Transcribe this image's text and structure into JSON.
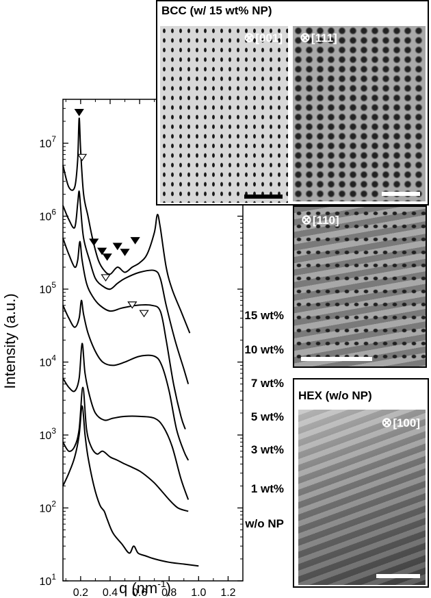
{
  "chart_data": {
    "type": "line",
    "xlabel": "q (nm",
    "xlabel_sup": "-1",
    "xlabel_tail": ")",
    "ylabel": "Intensity (a.u.)",
    "xlim": [
      0.08,
      1.3
    ],
    "ylim": [
      10,
      40000000
    ],
    "y_scale": "log",
    "x_ticks": [
      0.2,
      0.4,
      0.6,
      0.8,
      1.0,
      1.2
    ],
    "x_tick_labels": [
      "0.2",
      "0.4",
      "0.6",
      "0.8",
      "1.0",
      "1.2"
    ],
    "y_ticks": [
      10,
      100,
      1000,
      10000,
      100000,
      1000000,
      10000000
    ],
    "y_tick_base": "10",
    "y_tick_exps": [
      "1",
      "2",
      "3",
      "4",
      "5",
      "6",
      "7"
    ],
    "series": [
      {
        "name": "15 wt%",
        "x": [
          0.08,
          0.12,
          0.16,
          0.18,
          0.19,
          0.2,
          0.22,
          0.25,
          0.28,
          0.32,
          0.36,
          0.4,
          0.45,
          0.5,
          0.55,
          0.6,
          0.65,
          0.7,
          0.72,
          0.74,
          0.78,
          0.82,
          0.88,
          0.94
        ],
        "y": [
          5000000,
          2500000,
          2500000,
          6000000,
          22000000,
          8000000,
          2000000,
          1000000,
          500000,
          250000,
          180000,
          160000,
          200000,
          170000,
          200000,
          230000,
          300000,
          600000,
          1050000,
          700000,
          200000,
          100000,
          50000,
          25000
        ]
      },
      {
        "name": "10 wt%",
        "x": [
          0.08,
          0.12,
          0.16,
          0.18,
          0.19,
          0.2,
          0.22,
          0.26,
          0.3,
          0.35,
          0.4,
          0.45,
          0.5,
          0.6,
          0.7,
          0.74,
          0.78,
          0.84,
          0.9,
          0.93
        ],
        "y": [
          1400000,
          900000,
          700000,
          1500000,
          2200000,
          1300000,
          500000,
          250000,
          140000,
          110000,
          100000,
          120000,
          140000,
          170000,
          180000,
          140000,
          60000,
          20000,
          8000,
          5000
        ]
      },
      {
        "name": "7 wt%",
        "x": [
          0.08,
          0.12,
          0.16,
          0.18,
          0.195,
          0.21,
          0.24,
          0.28,
          0.33,
          0.4,
          0.48,
          0.58,
          0.68,
          0.74,
          0.78,
          0.83,
          0.88,
          0.91
        ],
        "y": [
          500000,
          300000,
          200000,
          250000,
          450000,
          250000,
          120000,
          80000,
          60000,
          50000,
          55000,
          60000,
          60000,
          50000,
          20000,
          5000,
          1800,
          1200
        ]
      },
      {
        "name": "5 wt%",
        "x": [
          0.08,
          0.12,
          0.16,
          0.19,
          0.205,
          0.22,
          0.25,
          0.3,
          0.35,
          0.42,
          0.5,
          0.6,
          0.7,
          0.75,
          0.8,
          0.85,
          0.9,
          0.93
        ],
        "y": [
          60000,
          40000,
          30000,
          40000,
          70000,
          45000,
          25000,
          14000,
          10000,
          9000,
          10000,
          12000,
          12000,
          9000,
          4000,
          1200,
          600,
          450
        ]
      },
      {
        "name": "3 wt%",
        "x": [
          0.08,
          0.12,
          0.16,
          0.19,
          0.21,
          0.23,
          0.26,
          0.3,
          0.36,
          0.42,
          0.5,
          0.6,
          0.7,
          0.76,
          0.82,
          0.88,
          0.93
        ],
        "y": [
          6000,
          4500,
          4000,
          6000,
          18000,
          7000,
          3500,
          2000,
          1600,
          1700,
          1800,
          1800,
          1700,
          1300,
          700,
          250,
          130
        ]
      },
      {
        "name": "1 wt%",
        "x": [
          0.08,
          0.12,
          0.16,
          0.19,
          0.215,
          0.24,
          0.27,
          0.31,
          0.35,
          0.4,
          0.45,
          0.5,
          0.55,
          0.6,
          0.65,
          0.7,
          0.75,
          0.8,
          0.86,
          0.93
        ],
        "y": [
          800,
          600,
          700,
          1200,
          4500,
          1200,
          700,
          550,
          600,
          500,
          450,
          400,
          360,
          320,
          270,
          220,
          170,
          130,
          100,
          90
        ]
      },
      {
        "name": "w/o NP",
        "x": [
          0.08,
          0.12,
          0.16,
          0.19,
          0.21,
          0.23,
          0.25,
          0.29,
          0.33,
          0.36,
          0.38,
          0.42,
          0.48,
          0.53,
          0.56,
          0.59,
          0.64,
          0.7,
          0.8,
          0.9,
          1.0
        ],
        "y": [
          200,
          300,
          500,
          1000,
          2500,
          1000,
          500,
          200,
          110,
          90,
          70,
          45,
          32,
          24,
          30,
          24,
          22,
          20,
          18,
          17,
          16
        ]
      }
    ],
    "curve_labels": [
      "15 wt%",
      "10 wt%",
      "7 wt%",
      "5 wt%",
      "3 wt%",
      "1 wt%",
      "w/o NP"
    ],
    "peak_markers_filled": [
      [
        0.19,
        24000000
      ],
      [
        0.29,
        400000
      ],
      [
        0.345,
        300000
      ],
      [
        0.38,
        250000
      ],
      [
        0.45,
        350000
      ],
      [
        0.5,
        290000
      ],
      [
        0.57,
        420000
      ]
    ],
    "peak_markers_open": [
      [
        0.21,
        5800000
      ],
      [
        0.37,
        130000
      ],
      [
        0.55,
        55000
      ],
      [
        0.63,
        42000
      ]
    ],
    "colors": {
      "line": "#000000",
      "axis": "#000000",
      "background": "#ffffff"
    }
  },
  "panels": {
    "bcc": {
      "title": "BCC (w/ 15 wt% NP)",
      "images": [
        {
          "zone": "[001]",
          "symbol": "⊗"
        },
        {
          "zone": "[111]",
          "symbol": "⊗"
        },
        {
          "zone": "[110]",
          "symbol": "⊗"
        }
      ]
    },
    "hex": {
      "title": "HEX (w/o NP)",
      "images": [
        {
          "zone": "[100]",
          "symbol": "⊗"
        }
      ]
    }
  }
}
